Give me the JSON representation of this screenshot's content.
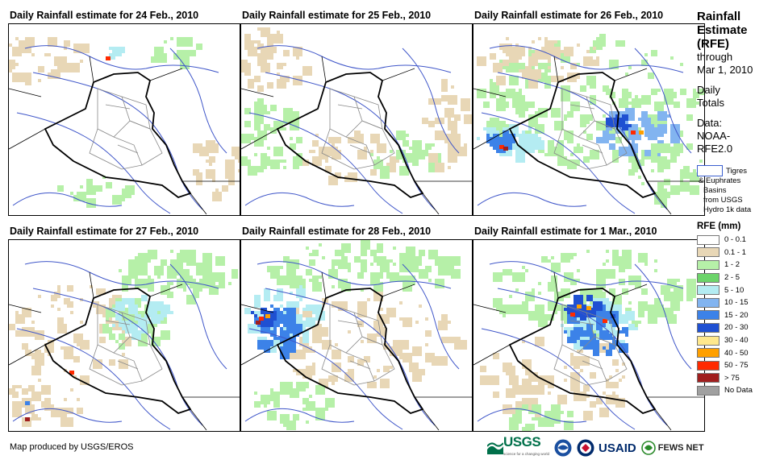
{
  "panels": [
    {
      "title": "Daily Rainfall estimate for 24 Feb., 2010",
      "intensity": "very light"
    },
    {
      "title": "Daily Rainfall estimate for 25 Feb., 2010",
      "intensity": "light"
    },
    {
      "title": "Daily Rainfall estimate for 26 Feb., 2010",
      "intensity": "moderate"
    },
    {
      "title": "Daily Rainfall estimate for 27 Feb., 2010",
      "intensity": "light-moderate"
    },
    {
      "title": "Daily Rainfall estimate for 28 Feb., 2010",
      "intensity": "heavy west"
    },
    {
      "title": "Daily Rainfall estimate for 1 Mar., 2010",
      "intensity": "heavy north"
    }
  ],
  "sidebar": {
    "title_lines": [
      "Rainfall",
      "Estimate",
      "(RFE)"
    ],
    "through": "through",
    "date": "Mar 1, 2010",
    "daily": "Daily",
    "totals": "Totals",
    "data_label": "Data:",
    "data_src1": "NOAA-",
    "data_src2": "RFE2.0",
    "basin_l1": "Tigres",
    "basin_l2": "& Euphrates",
    "basin_l3": "Basins",
    "basin_l4": "from USGS",
    "basin_l5": "Hydro 1k data"
  },
  "legend": {
    "title": "RFE (mm)",
    "items": [
      {
        "label": "0 - 0.1",
        "color": "#ffffff"
      },
      {
        "label": "0.1 - 1",
        "color": "#e8d7b6"
      },
      {
        "label": "1 - 2",
        "color": "#b6f0a8"
      },
      {
        "label": "2 - 5",
        "color": "#6cd46a"
      },
      {
        "label": "5 - 10",
        "color": "#b4ecf2"
      },
      {
        "label": "10 - 15",
        "color": "#82b4f0"
      },
      {
        "label": "15 - 20",
        "color": "#3c82e8"
      },
      {
        "label": "20 - 30",
        "color": "#1f50d2"
      },
      {
        "label": "30 - 40",
        "color": "#ffe88c"
      },
      {
        "label": "40 - 50",
        "color": "#ffa000"
      },
      {
        "label": "50 - 75",
        "color": "#ff2a00"
      },
      {
        "label": "> 75",
        "color": "#a01e1e"
      },
      {
        "label": "No Data",
        "color": "#a0a0a0"
      }
    ]
  },
  "credit": "Map produced by USGS/EROS",
  "logos": {
    "usgs": "USGS",
    "usgs_tag": "science for a changing world",
    "usaid": "USAID",
    "fews": "FEWS NET"
  }
}
